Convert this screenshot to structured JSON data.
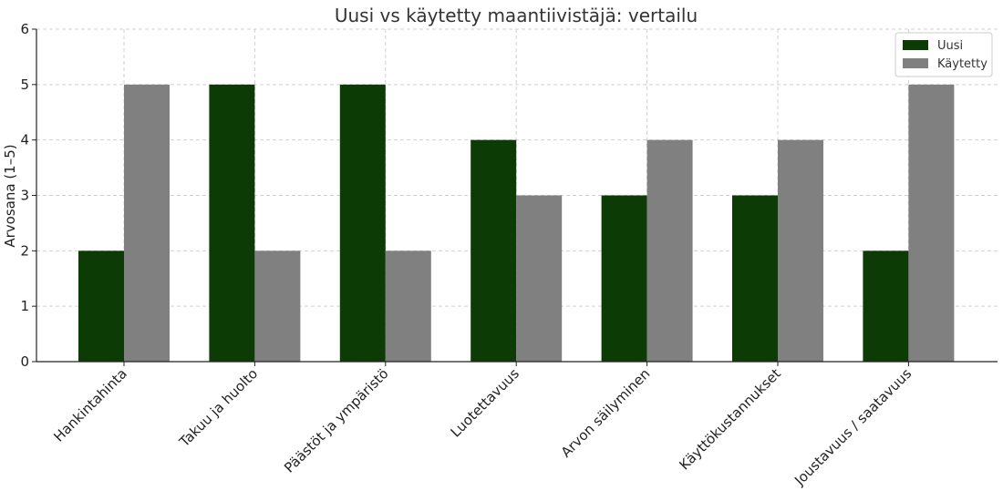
{
  "chart_data": {
    "type": "bar",
    "title": "Uusi vs käytetty maantiivistäjä: vertailu",
    "xlabel": "",
    "ylabel": "Arvosana (1–5)",
    "ylim": [
      0,
      6
    ],
    "yticks": [
      "0",
      "1",
      "2",
      "3",
      "4",
      "5",
      "6"
    ],
    "grid": true,
    "legend_position": "top-right",
    "categories": [
      "Hankintahinta",
      "Takuu ja huolto",
      "Päästöt ja ympäristö",
      "Luotettavuus",
      "Arvon säilyminen",
      "Käyttökustannukset",
      "Joustavuus / saatavuus"
    ],
    "series": [
      {
        "name": "Uusi",
        "color": "#0d3b05",
        "values": [
          2,
          5,
          5,
          4,
          3,
          3,
          2
        ]
      },
      {
        "name": "Käytetty",
        "color": "#808080",
        "values": [
          5,
          2,
          2,
          3,
          4,
          4,
          5
        ]
      }
    ]
  }
}
